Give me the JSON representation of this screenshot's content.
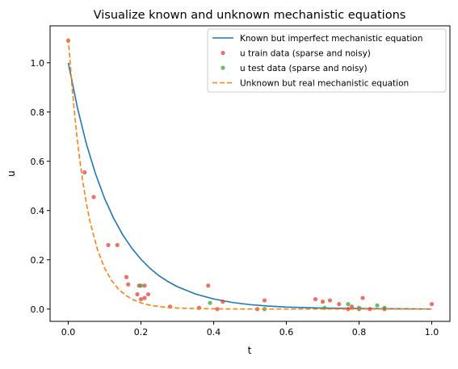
{
  "chart_data": {
    "type": "scatter",
    "title": "Visualize known and unknown mechanistic equations",
    "xlabel": "t",
    "ylabel": "u",
    "xlim": [
      -0.05,
      1.05
    ],
    "ylim": [
      -0.05,
      1.15
    ],
    "xticks": [
      "0.0",
      "0.2",
      "0.4",
      "0.6",
      "0.8",
      "1.0"
    ],
    "yticks": [
      "0.0",
      "0.2",
      "0.4",
      "0.6",
      "0.8",
      "1.0"
    ],
    "grid": false,
    "legend_position": "top-right",
    "colors": {
      "known": "#1f77b4",
      "train": "#e8403a",
      "test": "#3ca43c",
      "unknown": "#ff7f0e"
    },
    "series": [
      {
        "name": "Known but imperfect mechanistic equation",
        "kind": "line",
        "style": "solid",
        "x": [
          0.0,
          0.025,
          0.05,
          0.075,
          0.1,
          0.125,
          0.15,
          0.175,
          0.2,
          0.225,
          0.25,
          0.275,
          0.3,
          0.35,
          0.4,
          0.45,
          0.5,
          0.55,
          0.6,
          0.7,
          0.8,
          0.9,
          1.0
        ],
        "y": [
          1.0,
          0.819,
          0.67,
          0.549,
          0.449,
          0.368,
          0.301,
          0.247,
          0.202,
          0.165,
          0.135,
          0.111,
          0.091,
          0.061,
          0.041,
          0.027,
          0.018,
          0.012,
          0.008,
          0.004,
          0.002,
          0.001,
          0.0
        ]
      },
      {
        "name": "u train data (sparse and noisy)",
        "kind": "scatter",
        "x": [
          0.0,
          0.045,
          0.07,
          0.11,
          0.135,
          0.16,
          0.165,
          0.19,
          0.195,
          0.2,
          0.21,
          0.21,
          0.22,
          0.28,
          0.36,
          0.385,
          0.41,
          0.425,
          0.52,
          0.54,
          0.68,
          0.7,
          0.72,
          0.745,
          0.77,
          0.78,
          0.8,
          0.81,
          0.83,
          0.87,
          1.0
        ],
        "y": [
          1.09,
          0.555,
          0.455,
          0.26,
          0.26,
          0.13,
          0.1,
          0.06,
          0.095,
          0.04,
          0.095,
          0.045,
          0.06,
          0.01,
          0.005,
          0.095,
          0.0,
          0.03,
          0.0,
          0.035,
          0.04,
          0.03,
          0.035,
          0.02,
          0.0,
          0.01,
          0.0,
          0.045,
          0.0,
          0.0,
          0.02
        ]
      },
      {
        "name": "u test data (sparse and noisy)",
        "kind": "scatter",
        "x": [
          0.2,
          0.39,
          0.54,
          0.705,
          0.77,
          0.8,
          0.85,
          0.87
        ],
        "y": [
          0.095,
          0.025,
          0.0,
          0.005,
          0.02,
          0.005,
          0.015,
          0.005
        ]
      },
      {
        "name": "Unknown but real mechanistic equation",
        "kind": "line",
        "style": "dashed",
        "x": [
          0.0,
          0.01,
          0.02,
          0.03,
          0.04,
          0.05,
          0.06,
          0.08,
          0.1,
          0.12,
          0.14,
          0.16,
          0.18,
          0.2,
          0.22,
          0.25,
          0.3,
          0.35,
          0.4,
          0.5,
          0.6,
          0.7,
          0.8,
          0.9,
          1.0
        ],
        "y": [
          1.1,
          0.911,
          0.754,
          0.624,
          0.517,
          0.428,
          0.354,
          0.243,
          0.166,
          0.114,
          0.078,
          0.054,
          0.037,
          0.025,
          0.017,
          0.01,
          0.004,
          0.002,
          0.001,
          0.0,
          0.0,
          0.0,
          0.0,
          0.0,
          0.0
        ]
      }
    ]
  }
}
